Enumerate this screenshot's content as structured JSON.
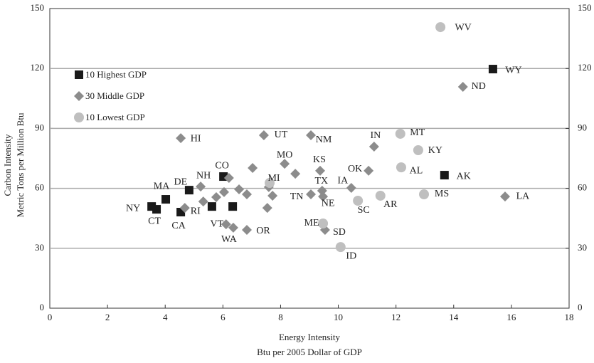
{
  "chart_data": {
    "type": "scatter",
    "xlabel": [
      "Energy Intensity",
      "Btu per 2005 Dollar of GDP"
    ],
    "ylabel": [
      "Carbon Intensity",
      "Metric Tons per Million Btu"
    ],
    "xlim": [
      0,
      18
    ],
    "xticks": [
      0,
      2,
      4,
      6,
      8,
      10,
      12,
      14,
      16,
      18
    ],
    "ylim": [
      0,
      150
    ],
    "yticks": [
      0,
      30,
      60,
      90,
      120,
      150
    ],
    "y2lim": [
      0,
      150
    ],
    "y2ticks": [
      0,
      30,
      60,
      90,
      120,
      150
    ],
    "grid": true,
    "legend": "upper left",
    "series": [
      {
        "name": "10 Highest GDP",
        "color": "#1a1a1a",
        "marker": "square",
        "x": [
          3.53,
          3.7,
          4.02,
          4.54,
          4.83,
          6.02,
          5.62,
          6.34,
          13.68,
          15.36
        ],
        "values": [
          50.9,
          49.5,
          54.5,
          48.1,
          59.1,
          65.9,
          50.9,
          50.9,
          66.6,
          119.7
        ],
        "labels": [
          "NY",
          "CT",
          "MA",
          "CA",
          "DE",
          "CO",
          null,
          null,
          "AK",
          "WY"
        ]
      },
      {
        "name": "30 Middle GDP",
        "color": "#8c8c8c",
        "marker": "diamond",
        "x": [
          4.54,
          7.42,
          9.05,
          11.24,
          14.32,
          15.78,
          11.05,
          10.45,
          9.37,
          9.44,
          9.47,
          9.05,
          9.54,
          8.14,
          8.51,
          7.59,
          7.72,
          7.54,
          7.03,
          5.23,
          6.21,
          6.04,
          5.77,
          5.32,
          4.68,
          6.56,
          6.83,
          6.11,
          6.36,
          6.83
        ],
        "values": [
          85.1,
          86.6,
          86.6,
          80.9,
          110.8,
          55.9,
          68.8,
          60.2,
          68.8,
          58.8,
          55.9,
          57.0,
          39.2,
          72.3,
          67.3,
          60.6,
          56.3,
          50.2,
          70.2,
          60.9,
          65.2,
          58.1,
          55.6,
          53.4,
          50.2,
          59.5,
          57.0,
          42.0,
          40.3,
          39.2
        ],
        "labels": [
          "HI",
          "UT",
          "NM",
          "IN",
          "ND",
          "LA",
          "OK",
          "IA",
          "KS",
          "TX",
          "NE",
          "TN",
          "SD",
          "MO",
          null,
          null,
          null,
          null,
          null,
          "NH",
          null,
          null,
          null,
          null,
          "RI",
          null,
          null,
          "VT",
          "WA",
          "OR"
        ]
      },
      {
        "name": "10 Lowest GDP",
        "color": "#bfbfbf",
        "marker": "circle",
        "x": [
          13.54,
          12.15,
          12.77,
          12.18,
          12.97,
          11.46,
          10.68,
          9.47,
          10.08,
          7.62
        ],
        "values": [
          140.7,
          87.3,
          79.1,
          70.5,
          57.0,
          56.3,
          53.8,
          42.4,
          30.6,
          62.7
        ],
        "labels": [
          "WV",
          "MT",
          "KY",
          "AL",
          "MS",
          "AR",
          "SC",
          "ME",
          "ID",
          "MI"
        ]
      }
    ]
  }
}
